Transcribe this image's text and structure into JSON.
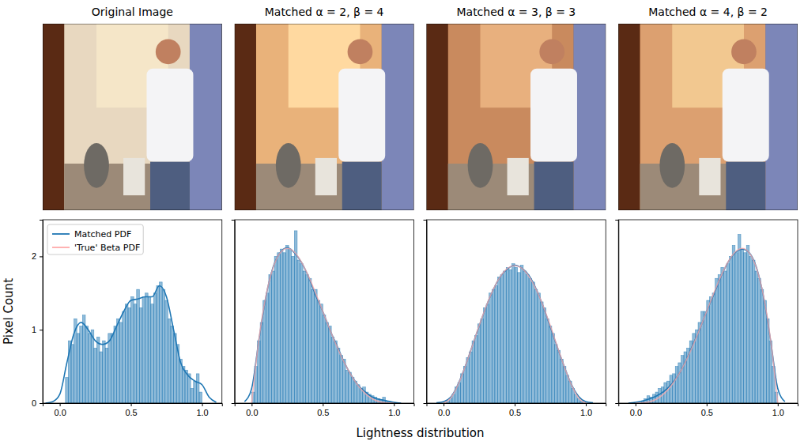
{
  "chart_data": {
    "type": "histogram",
    "xlabel": "Lightness distribution",
    "ylabel": "Pixel Count",
    "legend": "upper left",
    "grid": false,
    "color": "#1f77b4",
    "xlim": [
      -0.12,
      1.14
    ],
    "ylim": [
      0,
      2.5
    ],
    "xticks": [
      {
        "value": 0,
        "label": "0.0"
      },
      {
        "value": 0.5,
        "label": "0.5"
      },
      {
        "value": 1,
        "label": "1.0"
      }
    ],
    "yticks": [
      0,
      1,
      2
    ],
    "bins": [
      0,
      0.02,
      0.04,
      0.06,
      0.08,
      0.1,
      0.12,
      0.14,
      0.16,
      0.18,
      0.2,
      0.22,
      0.24,
      0.26,
      0.28,
      0.3,
      0.32,
      0.34,
      0.36,
      0.38,
      0.4,
      0.42,
      0.44,
      0.46,
      0.48,
      0.5,
      0.52,
      0.54,
      0.56,
      0.58,
      0.6,
      0.62,
      0.64,
      0.66,
      0.68,
      0.7,
      0.72,
      0.74,
      0.76,
      0.78,
      0.8,
      0.82,
      0.84,
      0.86,
      0.88,
      0.9,
      0.92,
      0.94,
      0.96,
      0.98,
      1
    ],
    "series": [
      {
        "name": "Matched PDF",
        "color": "#1f77b4"
      },
      {
        "name": "'True' Beta PDF",
        "color": "#ffaaaa"
      }
    ],
    "panels": [
      {
        "title": "Original Image",
        "counts": [
          0,
          0,
          0.35,
          0.85,
          0.8,
          1.15,
          0.95,
          1.05,
          1.2,
          1.05,
          0.95,
          1.0,
          0.75,
          0.9,
          0.7,
          0.85,
          0.75,
          0.95,
          0.95,
          1.05,
          1.15,
          1.1,
          1.25,
          1.35,
          1.3,
          1.45,
          1.35,
          1.55,
          1.3,
          1.45,
          1.5,
          1.45,
          1.35,
          1.5,
          1.6,
          1.65,
          1.55,
          1.4,
          1.15,
          1.05,
          0.95,
          0.8,
          0.6,
          0.5,
          0.45,
          0.4,
          0.2,
          0.3,
          0.4,
          0.15
        ],
        "kde": {
          "x": [
            -0.1,
            -0.05,
            0,
            0.05,
            0.1,
            0.15,
            0.2,
            0.25,
            0.3,
            0.35,
            0.4,
            0.45,
            0.5,
            0.55,
            0.6,
            0.65,
            0.7,
            0.75,
            0.8,
            0.85,
            0.9,
            0.95,
            1.0,
            1.05,
            1.1
          ],
          "values": [
            0,
            0.02,
            0.12,
            0.55,
            0.95,
            1.1,
            1.0,
            0.85,
            0.8,
            0.85,
            1.05,
            1.25,
            1.4,
            1.42,
            1.45,
            1.45,
            1.6,
            1.45,
            1.0,
            0.55,
            0.38,
            0.3,
            0.25,
            0.08,
            0.01
          ]
        }
      },
      {
        "title": "Matched α = 2, β = 4",
        "tick_labels": "x",
        "counts": [
          0.15,
          0.5,
          0.85,
          1.1,
          1.4,
          1.5,
          1.75,
          1.8,
          2.0,
          2.05,
          2.1,
          2.05,
          2.15,
          2.1,
          2.0,
          2.35,
          1.95,
          1.9,
          1.8,
          1.75,
          1.7,
          1.55,
          1.55,
          1.4,
          1.35,
          1.2,
          1.1,
          1.05,
          0.9,
          0.85,
          0.75,
          0.65,
          0.6,
          0.45,
          0.42,
          0.35,
          0.3,
          0.25,
          0.2,
          0.22,
          0.15,
          0.12,
          0.1,
          0.08,
          0.06,
          0.05,
          0.08,
          0.03,
          0,
          0
        ],
        "kde": {
          "x": [
            -0.05,
            0,
            0.05,
            0.1,
            0.15,
            0.2,
            0.25,
            0.3,
            0.35,
            0.4,
            0.45,
            0.5,
            0.55,
            0.6,
            0.65,
            0.7,
            0.75,
            0.8,
            0.85,
            0.9,
            0.95,
            1.0,
            1.05
          ],
          "values": [
            0.02,
            0.2,
            0.85,
            1.45,
            1.85,
            2.05,
            2.12,
            2.05,
            1.92,
            1.72,
            1.47,
            1.25,
            1.0,
            0.78,
            0.56,
            0.38,
            0.24,
            0.15,
            0.08,
            0.05,
            0.03,
            0.01,
            0
          ]
        },
        "beta": {
          "x": [
            0,
            0.05,
            0.1,
            0.15,
            0.2,
            0.25,
            0.3,
            0.35,
            0.4,
            0.45,
            0.5,
            0.55,
            0.6,
            0.65,
            0.7,
            0.75,
            0.8,
            0.85,
            0.9,
            0.95,
            1.0
          ],
          "values": [
            0,
            0.857,
            1.458,
            1.842,
            2.048,
            2.109,
            2.058,
            1.922,
            1.728,
            1.497,
            1.25,
            1.002,
            0.768,
            0.557,
            0.378,
            0.234,
            0.128,
            0.057,
            0.018,
            0.002,
            0
          ]
        }
      },
      {
        "title": "Matched α = 3, β = 3",
        "tick_labels": "x",
        "counts": [
          0,
          0.03,
          0.07,
          0.12,
          0.22,
          0.28,
          0.4,
          0.5,
          0.62,
          0.7,
          0.85,
          0.92,
          1.08,
          1.15,
          1.3,
          1.35,
          1.5,
          1.55,
          1.6,
          1.72,
          1.75,
          1.8,
          1.85,
          1.82,
          1.9,
          1.85,
          1.78,
          1.88,
          1.8,
          1.75,
          1.7,
          1.65,
          1.55,
          1.5,
          1.38,
          1.3,
          1.15,
          1.05,
          0.95,
          0.8,
          0.72,
          0.6,
          0.5,
          0.38,
          0.3,
          0.2,
          0.12,
          0.06,
          0.03,
          0
        ],
        "kde": {
          "x": [
            -0.05,
            0,
            0.05,
            0.1,
            0.15,
            0.2,
            0.25,
            0.3,
            0.35,
            0.4,
            0.45,
            0.5,
            0.55,
            0.6,
            0.65,
            0.7,
            0.75,
            0.8,
            0.85,
            0.9,
            0.95,
            1.0,
            1.05
          ],
          "values": [
            0.005,
            0.02,
            0.08,
            0.25,
            0.49,
            0.77,
            1.05,
            1.32,
            1.55,
            1.73,
            1.83,
            1.88,
            1.84,
            1.74,
            1.56,
            1.32,
            1.04,
            0.76,
            0.49,
            0.25,
            0.09,
            0.02,
            0.005
          ]
        },
        "beta": {
          "x": [
            0,
            0.05,
            0.1,
            0.15,
            0.2,
            0.25,
            0.3,
            0.35,
            0.4,
            0.45,
            0.5,
            0.55,
            0.6,
            0.65,
            0.7,
            0.75,
            0.8,
            0.85,
            0.9,
            0.95,
            1.0
          ],
          "values": [
            0,
            0.068,
            0.243,
            0.488,
            0.768,
            1.055,
            1.323,
            1.553,
            1.728,
            1.838,
            1.875,
            1.838,
            1.728,
            1.553,
            1.323,
            1.055,
            0.768,
            0.488,
            0.243,
            0.068,
            0
          ]
        }
      },
      {
        "title": "Matched α = 4, β = 2",
        "tick_labels": "x",
        "counts": [
          0,
          0,
          0.03,
          0.06,
          0.1,
          0.08,
          0.12,
          0.15,
          0.2,
          0.22,
          0.28,
          0.3,
          0.38,
          0.4,
          0.5,
          0.55,
          0.65,
          0.7,
          0.75,
          0.85,
          0.95,
          1.0,
          1.1,
          1.25,
          1.25,
          1.4,
          1.45,
          1.5,
          1.7,
          1.75,
          1.85,
          1.8,
          1.9,
          2.0,
          2.15,
          2.05,
          2.3,
          2.1,
          2.05,
          2.15,
          2.0,
          1.95,
          1.8,
          1.7,
          1.55,
          1.4,
          1.15,
          0.85,
          0.5,
          0.15
        ],
        "kde": {
          "x": [
            -0.05,
            0,
            0.05,
            0.1,
            0.15,
            0.2,
            0.25,
            0.3,
            0.35,
            0.4,
            0.45,
            0.5,
            0.55,
            0.6,
            0.65,
            0.7,
            0.75,
            0.8,
            0.85,
            0.9,
            0.95,
            1.0,
            1.05
          ],
          "values": [
            0,
            0.01,
            0.03,
            0.06,
            0.1,
            0.16,
            0.25,
            0.38,
            0.56,
            0.78,
            1.0,
            1.25,
            1.48,
            1.72,
            1.92,
            2.05,
            2.1,
            2.05,
            1.85,
            1.45,
            0.85,
            0.2,
            0.02
          ]
        },
        "beta": {
          "x": [
            0,
            0.05,
            0.1,
            0.15,
            0.2,
            0.25,
            0.3,
            0.35,
            0.4,
            0.45,
            0.5,
            0.55,
            0.6,
            0.65,
            0.7,
            0.75,
            0.8,
            0.85,
            0.9,
            0.95,
            1.0
          ],
          "values": [
            0,
            0.002,
            0.018,
            0.057,
            0.128,
            0.234,
            0.378,
            0.557,
            0.768,
            1.002,
            1.25,
            1.497,
            1.728,
            1.922,
            2.058,
            2.109,
            2.048,
            1.842,
            1.458,
            0.857,
            0
          ]
        }
      }
    ]
  }
}
